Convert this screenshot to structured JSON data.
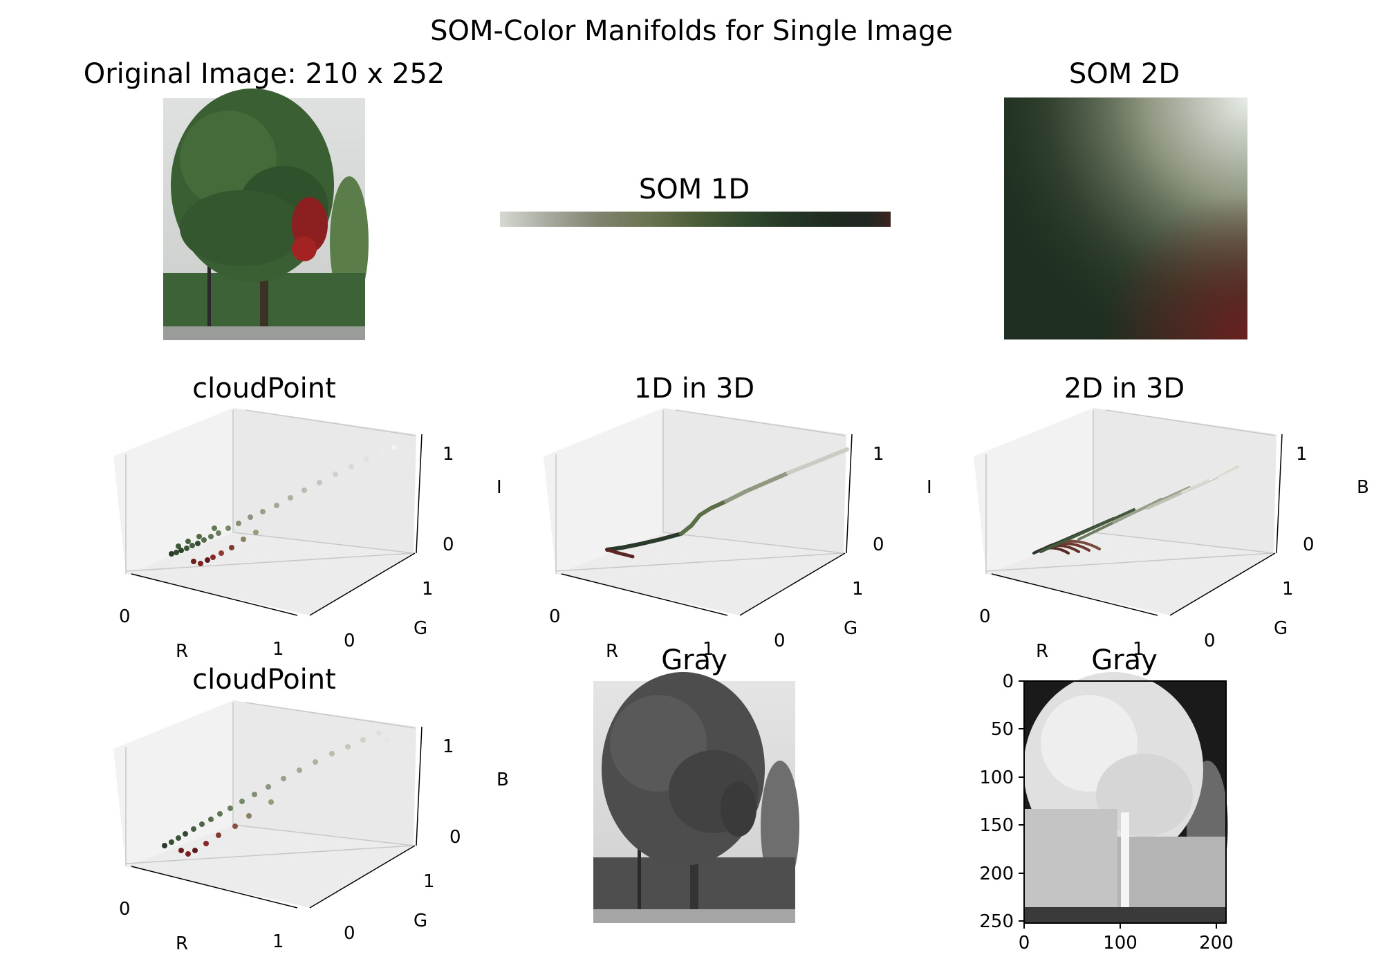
{
  "figure": {
    "suptitle": "SOM-Color Manifolds for Single Image"
  },
  "panels": {
    "original": {
      "title": "Original Image: 210 x 252"
    },
    "som1d": {
      "title": "SOM 1D"
    },
    "som2d": {
      "title": "SOM 2D"
    },
    "cloud_rgi": {
      "title": "cloudPoint",
      "xlabel": "R",
      "ylabel": "G",
      "zlabel": "I"
    },
    "line_3d": {
      "title": "1D in 3D",
      "xlabel": "R",
      "ylabel": "G",
      "zlabel": "I"
    },
    "grid_3d": {
      "title": "2D in 3D",
      "xlabel": "R",
      "ylabel": "G",
      "zlabel": "B"
    },
    "cloud_rgb": {
      "title": "cloudPoint",
      "xlabel": "R",
      "ylabel": "G",
      "zlabel": "B"
    },
    "gray": {
      "title": "Gray"
    },
    "gray_inverted": {
      "title": "Gray"
    }
  },
  "chart_data": [
    {
      "type": "image",
      "title": "Original Image: 210 x 252",
      "width": 210,
      "height": 252
    },
    {
      "type": "heatmap",
      "title": "SOM 1D",
      "colors": [
        "#d6d9d2",
        "#a8ab9f",
        "#80836f",
        "#6a7450",
        "#4c5e38",
        "#334a2e",
        "#243826",
        "#1f2a20",
        "#222622",
        "#3a2520"
      ]
    },
    {
      "type": "heatmap",
      "title": "SOM 2D",
      "corner_colors": {
        "top_left": "#2f4627",
        "top_right": "#e8ece8",
        "bottom_left": "#1c2a1e",
        "bottom_right": "#5a2420"
      }
    },
    {
      "type": "scatter",
      "title": "cloudPoint",
      "xlabel": "R",
      "ylabel": "G",
      "zlabel": "I",
      "xticks": [
        "0",
        "1"
      ],
      "yticks": [
        "0",
        "1"
      ],
      "zticks": [
        "0",
        "1"
      ],
      "xlim": [
        0,
        1
      ],
      "ylim": [
        0,
        1
      ],
      "zlim": [
        0,
        1
      ]
    },
    {
      "type": "line",
      "title": "1D in 3D",
      "xlabel": "R",
      "ylabel": "G",
      "zlabel": "I",
      "xticks": [
        "0",
        "1"
      ],
      "yticks": [
        "0",
        "1"
      ],
      "zticks": [
        "0",
        "1"
      ],
      "xlim": [
        0,
        1
      ],
      "ylim": [
        0,
        1
      ],
      "zlim": [
        0,
        1
      ]
    },
    {
      "type": "scatter",
      "title": "2D in 3D",
      "xlabel": "R",
      "ylabel": "G",
      "zlabel": "B",
      "xticks": [
        "0",
        "1"
      ],
      "yticks": [
        "0",
        "1"
      ],
      "zticks": [
        "0",
        "1"
      ],
      "xlim": [
        0,
        1
      ],
      "ylim": [
        0,
        1
      ],
      "zlim": [
        0,
        1
      ]
    },
    {
      "type": "scatter",
      "title": "cloudPoint",
      "xlabel": "R",
      "ylabel": "G",
      "zlabel": "B",
      "xticks": [
        "0",
        "1"
      ],
      "yticks": [
        "0",
        "1"
      ],
      "zticks": [
        "0",
        "1"
      ],
      "xlim": [
        0,
        1
      ],
      "ylim": [
        0,
        1
      ],
      "zlim": [
        0,
        1
      ]
    },
    {
      "type": "image",
      "title": "Gray"
    },
    {
      "type": "heatmap",
      "title": "Gray",
      "xticks": [
        "0",
        "100",
        "200"
      ],
      "yticks": [
        "0",
        "50",
        "100",
        "150",
        "200",
        "250"
      ],
      "xlim": [
        0,
        210
      ],
      "ylim": [
        0,
        252
      ]
    }
  ]
}
